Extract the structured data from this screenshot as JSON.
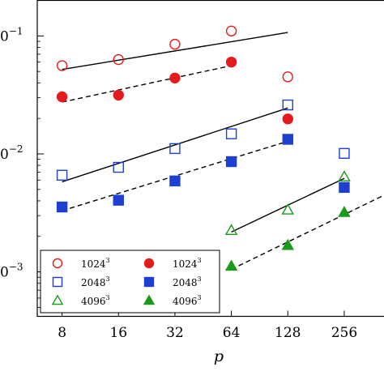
{
  "chart_data": {
    "type": "scatter",
    "title": "",
    "xlabel": "p",
    "ylabel": "",
    "xscale": "log2",
    "yscale": "log",
    "xlim": [
      5.9,
      470
    ],
    "ylim": [
      0.00042,
      0.2
    ],
    "x_ticks": [
      8,
      16,
      32,
      64,
      128,
      256
    ],
    "x_tick_labels": [
      "8",
      "16",
      "32",
      "64",
      "128",
      "256"
    ],
    "y_ticks": [
      0.1,
      0.01,
      0.001
    ],
    "y_tick_labels": [
      {
        "base": "0",
        "exp": "−1"
      },
      {
        "base": "0",
        "exp": "−2"
      },
      {
        "base": "0",
        "exp": "−3"
      }
    ],
    "legend_position": "bottom-left",
    "series": [
      {
        "label": {
          "base": "1024",
          "exp": "3"
        },
        "marker": "circle",
        "fill": "none",
        "color": "#e41a1c",
        "x": [
          8,
          16,
          32,
          64,
          128
        ],
        "y": [
          0.056,
          0.063,
          0.085,
          0.11,
          0.045
        ]
      },
      {
        "label": {
          "base": "2048",
          "exp": "3"
        },
        "marker": "square",
        "fill": "none",
        "color": "#1f3fd1",
        "x": [
          8,
          16,
          32,
          64,
          128,
          256
        ],
        "y": [
          0.0066,
          0.0077,
          0.0111,
          0.0148,
          0.026,
          0.0101
        ]
      },
      {
        "label": {
          "base": "4096",
          "exp": "3"
        },
        "marker": "triangle",
        "fill": "none",
        "color": "#1a9a1a",
        "x": [
          64,
          128,
          256
        ],
        "y": [
          0.00225,
          0.00335,
          0.0064
        ]
      },
      {
        "label": {
          "base": "1024",
          "exp": "3"
        },
        "marker": "circle",
        "fill": "solid",
        "color": "#e41a1c",
        "x": [
          8,
          16,
          32,
          64,
          128
        ],
        "y": [
          0.0305,
          0.0315,
          0.044,
          0.06,
          0.0198
        ]
      },
      {
        "label": {
          "base": "2048",
          "exp": "3"
        },
        "marker": "square",
        "fill": "solid",
        "color": "#1f3fd1",
        "x": [
          8,
          16,
          32,
          64,
          128,
          256
        ],
        "y": [
          0.00355,
          0.00405,
          0.0059,
          0.0086,
          0.0133,
          0.0052
        ]
      },
      {
        "label": {
          "base": "4096",
          "exp": "3"
        },
        "marker": "triangle",
        "fill": "solid",
        "color": "#1a9a1a",
        "x": [
          64,
          128,
          256
        ],
        "y": [
          0.00112,
          0.00168,
          0.0032
        ]
      }
    ],
    "fit_lines": [
      {
        "style": "solid",
        "x": [
          8,
          128
        ],
        "y": [
          0.052,
          0.107
        ]
      },
      {
        "style": "dashed",
        "x": [
          8,
          64
        ],
        "y": [
          0.0275,
          0.056
        ]
      },
      {
        "style": "solid",
        "x": [
          8,
          128
        ],
        "y": [
          0.0058,
          0.0245
        ]
      },
      {
        "style": "dashed",
        "x": [
          8,
          128
        ],
        "y": [
          0.0033,
          0.0128
        ]
      },
      {
        "style": "solid",
        "x": [
          64,
          256
        ],
        "y": [
          0.00218,
          0.0062
        ]
      },
      {
        "style": "dashed",
        "x": [
          64,
          470
        ],
        "y": [
          0.00105,
          0.0049
        ]
      }
    ]
  }
}
